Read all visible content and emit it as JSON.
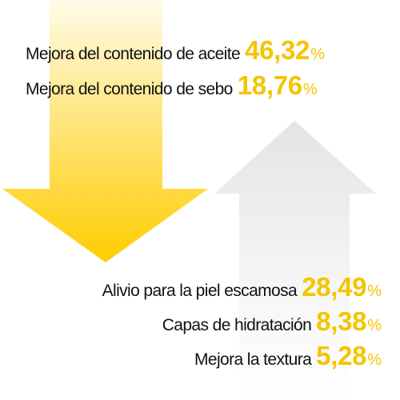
{
  "colors": {
    "accent_yellow": "#f5c400",
    "down_arrow_top": "#fffbe8",
    "down_arrow_bottom": "#ffcc00",
    "up_arrow_top": "#e4e4e4",
    "up_arrow_bottom": "#ffffff",
    "label_text": "#111111"
  },
  "icons": {
    "down_arrow": "down-arrow-icon",
    "up_arrow": "up-arrow-icon"
  },
  "stats_decrease": [
    {
      "label": "Mejora del contenido de aceite",
      "value": "46,32",
      "unit": "%"
    },
    {
      "label": "Mejora del contenido de sebo",
      "value": "18,76",
      "unit": "%"
    }
  ],
  "stats_increase": [
    {
      "label": "Alivio para la piel escamosa",
      "value": "28,49",
      "unit": "%"
    },
    {
      "label": "Capas de hidratación",
      "value": "8,38",
      "unit": "%"
    },
    {
      "label": "Mejora la textura",
      "value": "5,28",
      "unit": "%"
    }
  ]
}
